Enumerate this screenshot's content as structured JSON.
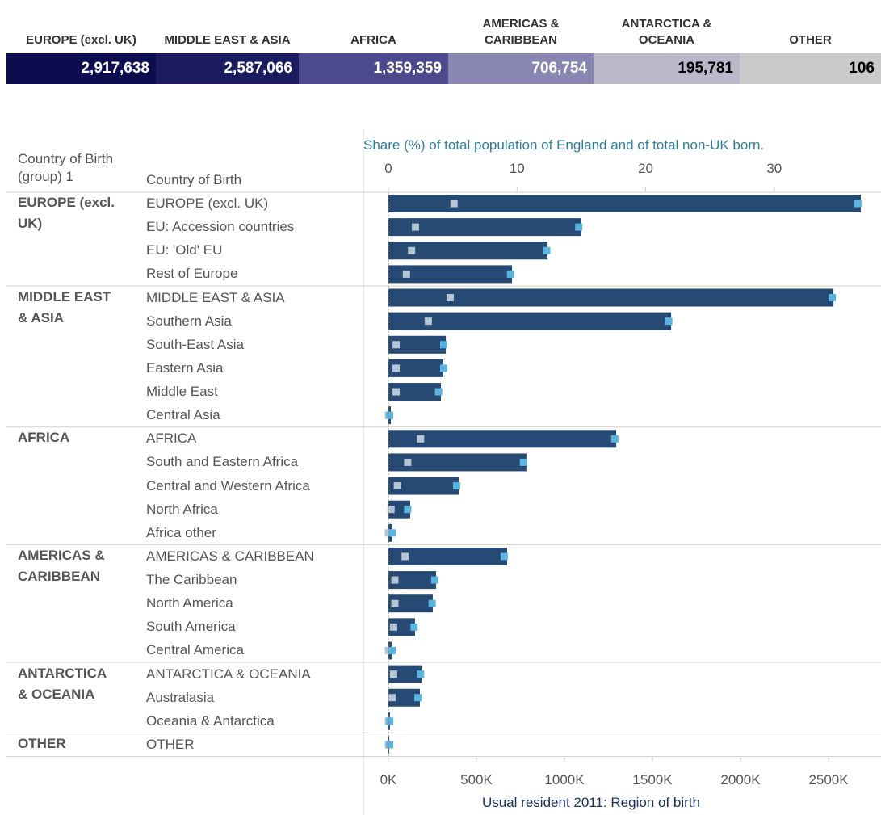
{
  "summary": {
    "items": [
      {
        "label": "EUROPE (excl. UK)",
        "value": "2,917,638",
        "color": "#0c0c4e",
        "text_color": "#ffffff"
      },
      {
        "label": "MIDDLE EAST & ASIA",
        "value": "2,587,066",
        "color": "#1b1b60",
        "text_color": "#ffffff"
      },
      {
        "label": "AFRICA",
        "value": "1,359,359",
        "color": "#4c4a8c",
        "text_color": "#ffffff"
      },
      {
        "label": "AMERICAS & CARIBBEAN",
        "value": "706,754",
        "color": "#8987b2",
        "text_color": "#ffffff"
      },
      {
        "label": "ANTARCTICA & OCEANIA",
        "value": "195,781",
        "color": "#b9b9ca",
        "text_color": "#000000"
      },
      {
        "label": "OTHER",
        "value": "106",
        "color": "#cacaca",
        "text_color": "#000000"
      }
    ]
  },
  "chart_data": {
    "type": "bar",
    "orientation": "horizontal",
    "group_header": "Country of Birth (group) 1",
    "category_header": "Country of Birth",
    "x2_title": "Share (%) of total population of England and of total non-UK born.",
    "x_title": "Usual resident 2011: Region of birth",
    "bar_color": "#264a73",
    "marker_color_nonuk": "#5ab4e0",
    "marker_color_total": "#b4c6d6",
    "xlim": [
      0,
      2798
    ],
    "xticks": [
      {
        "value": 0,
        "label": "0K"
      },
      {
        "value": 500,
        "label": "500K"
      },
      {
        "value": 1000,
        "label": "1000K"
      },
      {
        "value": 1500,
        "label": "1500K"
      },
      {
        "value": 2000,
        "label": "2000K"
      },
      {
        "value": 2500,
        "label": "2500K"
      }
    ],
    "x2lim": [
      0,
      38.3
    ],
    "x2ticks": [
      0,
      10,
      20,
      30
    ],
    "groups": [
      {
        "name": "EUROPE (excl. UK)",
        "categories": [
          "EUROPE (excl. UK)",
          "EU: Accession countries",
          "EU: 'Old' EU",
          "Rest of Europe"
        ],
        "values": [
          2683,
          1096,
          904,
          702
        ],
        "share_nonuk": [
          36.5,
          14.8,
          12.3,
          9.5
        ],
        "share_total": [
          5.1,
          2.1,
          1.8,
          1.4
        ]
      },
      {
        "name": "MIDDLE EAST & ASIA",
        "categories": [
          "MIDDLE EAST & ASIA",
          "Southern Asia",
          "South-East Asia",
          "Eastern Asia",
          "Middle East",
          "Central Asia"
        ],
        "values": [
          2528,
          1606,
          326,
          312,
          298,
          14
        ],
        "share_nonuk": [
          34.5,
          21.8,
          4.3,
          4.3,
          3.9,
          0.1
        ],
        "share_total": [
          4.8,
          3.1,
          0.6,
          0.6,
          0.6,
          0.0
        ]
      },
      {
        "name": "AFRICA",
        "categories": [
          "AFRICA",
          "South and Eastern Africa",
          "Central and Western Africa",
          "North Africa",
          "Africa other"
        ],
        "values": [
          1294,
          784,
          399,
          124,
          23
        ],
        "share_nonuk": [
          17.6,
          10.5,
          5.3,
          1.5,
          0.3
        ],
        "share_total": [
          2.5,
          1.5,
          0.7,
          0.2,
          0.0
        ]
      },
      {
        "name": "AMERICAS & CARIBBEAN",
        "categories": [
          "AMERICAS & CARIBBEAN",
          "The Caribbean",
          "North America",
          "South America",
          "Central America"
        ],
        "values": [
          674,
          271,
          252,
          151,
          18
        ],
        "share_nonuk": [
          9.0,
          3.6,
          3.4,
          2.0,
          0.3
        ],
        "share_total": [
          1.3,
          0.5,
          0.5,
          0.4,
          0.0
        ]
      },
      {
        "name": "ANTARCTICA & OCEANIA",
        "categories": [
          "ANTARCTICA & OCEANIA",
          "Australasia",
          "Oceania & Antarctica"
        ],
        "values": [
          188,
          179,
          9
        ],
        "share_nonuk": [
          2.5,
          2.3,
          0.1
        ],
        "share_total": [
          0.4,
          0.3,
          0.0
        ]
      },
      {
        "name": "OTHER",
        "categories": [
          "OTHER"
        ],
        "values": [
          5
        ],
        "share_nonuk": [
          0.1
        ],
        "share_total": [
          0.0
        ]
      }
    ]
  }
}
